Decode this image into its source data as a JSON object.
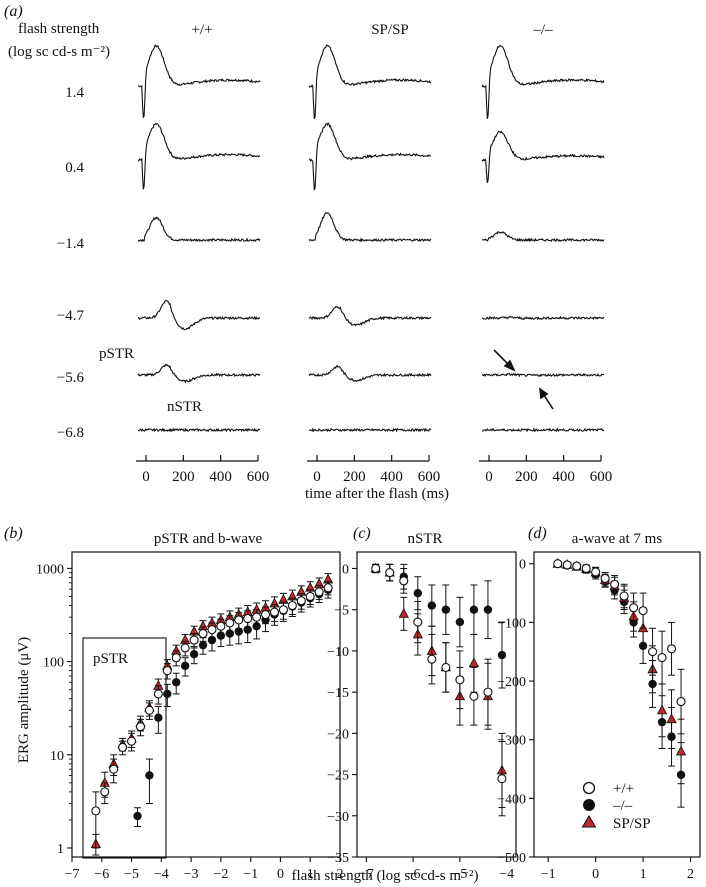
{
  "panel_a": {
    "label": "(a)",
    "strength_header_1": "flash strength",
    "strength_header_2": "(log sc cd-s m⁻²)",
    "column_titles": [
      "+/+",
      "SP/SP",
      "–/–"
    ],
    "row_labels": [
      "1.4",
      "0.4",
      "−1.4",
      "−4.7",
      "−5.6",
      "−6.8"
    ],
    "time_ticks": [
      "0",
      "200",
      "400",
      "600"
    ],
    "time_axis_label": "time after the flash (ms)",
    "annotation_pstr": "pSTR",
    "annotation_nstr": "nSTR",
    "traces_description_values": {
      "waveform_peak_mV_scaled": {
        "wt": [
          1.0,
          0.9,
          0.7,
          0.6,
          0.35,
          0.0
        ],
        "sp": [
          1.0,
          0.9,
          0.85,
          0.4,
          0.3,
          0.0
        ],
        "ko": [
          1.0,
          0.7,
          0.25,
          0.02,
          0.02,
          0.0
        ]
      }
    }
  },
  "colors": {
    "wt_fill": "#ffffff",
    "ko_fill": "#111111",
    "sp_fill": "#c0282d",
    "line": "#111111"
  },
  "shared_xlabel": "flash strength (log sc cd-s m⁻²)",
  "legend": [
    {
      "marker": "open-circle",
      "label": "+/+"
    },
    {
      "marker": "filled-circle",
      "label": "–/–"
    },
    {
      "marker": "red-triangle",
      "label": "SP/SP"
    }
  ],
  "chart_data": [
    {
      "id": "b",
      "panel_label": "(b)",
      "title": "pSTR and b-wave",
      "type": "scatter",
      "ylabel": "ERG amplitude (μV)",
      "yscale": "log",
      "xlim": [
        -7,
        2
      ],
      "ylim": [
        0.8,
        1500
      ],
      "xticks": [
        -7,
        -6,
        -5,
        -4,
        -3,
        -2,
        -1,
        0,
        1,
        2
      ],
      "yticks": [
        1,
        10,
        100,
        1000
      ],
      "inset_label": "pSTR",
      "series": [
        {
          "name": "+/+",
          "x": [
            -6.2,
            -5.9,
            -5.6,
            -5.3,
            -5.0,
            -4.7,
            -4.4,
            -4.1,
            -3.8,
            -3.5,
            -3.2,
            -2.9,
            -2.6,
            -2.3,
            -2.0,
            -1.7,
            -1.4,
            -1.1,
            -0.8,
            -0.5,
            -0.2,
            0.1,
            0.4,
            0.7,
            1.0,
            1.3,
            1.6
          ],
          "y": [
            2.5,
            4,
            7,
            12,
            14,
            20,
            30,
            45,
            80,
            110,
            140,
            170,
            200,
            220,
            240,
            260,
            280,
            290,
            300,
            320,
            340,
            360,
            400,
            450,
            500,
            560,
            620
          ],
          "err": [
            1.5,
            1,
            2,
            2,
            3,
            4,
            6,
            10,
            15,
            20,
            25,
            30,
            35,
            40,
            45,
            50,
            55,
            60,
            60,
            65,
            70,
            75,
            80,
            85,
            90,
            95,
            100
          ]
        },
        {
          "name": "–/–",
          "x": [
            -4.8,
            -4.4,
            -4.1,
            -3.8,
            -3.5,
            -3.2,
            -2.9,
            -2.6,
            -2.3,
            -2.0,
            -1.7,
            -1.4,
            -1.1,
            -0.8,
            -0.5,
            -0.2,
            0.1,
            0.4,
            0.7,
            1.0,
            1.3,
            1.6
          ],
          "y": [
            2.2,
            6,
            25,
            45,
            60,
            90,
            120,
            150,
            170,
            190,
            200,
            210,
            220,
            240,
            280,
            320,
            350,
            390,
            430,
            480,
            530,
            590
          ],
          "err": [
            0.5,
            3,
            8,
            12,
            15,
            20,
            25,
            30,
            40,
            45,
            50,
            55,
            60,
            65,
            70,
            75,
            80,
            85,
            90,
            95,
            100,
            110
          ]
        },
        {
          "name": "SP/SP",
          "x": [
            -6.2,
            -5.9,
            -5.6,
            -5.3,
            -5.0,
            -4.7,
            -4.4,
            -4.1,
            -3.8,
            -3.5,
            -3.2,
            -2.9,
            -2.6,
            -2.3,
            -2.0,
            -1.7,
            -1.4,
            -1.1,
            -0.8,
            -0.5,
            -0.2,
            0.1,
            0.4,
            0.7,
            1.0,
            1.3,
            1.6
          ],
          "y": [
            1.1,
            5,
            8,
            13,
            15,
            22,
            32,
            55,
            90,
            130,
            170,
            210,
            240,
            260,
            280,
            300,
            320,
            340,
            360,
            380,
            420,
            460,
            500,
            560,
            620,
            680,
            760
          ],
          "err": [
            0.3,
            1.5,
            2,
            2,
            3,
            4,
            6,
            10,
            15,
            20,
            25,
            30,
            35,
            40,
            45,
            50,
            55,
            60,
            65,
            70,
            75,
            80,
            85,
            90,
            100,
            110,
            120
          ]
        }
      ]
    },
    {
      "id": "c",
      "panel_label": "(c)",
      "title": "nSTR",
      "type": "scatter",
      "xlim": [
        -7.2,
        -3.8
      ],
      "ylim": [
        -35,
        2
      ],
      "xticks": [
        -7,
        -6,
        -5,
        -4
      ],
      "yticks": [
        0,
        -5,
        -10,
        -15,
        -20,
        -25,
        -30,
        -35
      ],
      "series": [
        {
          "name": "+/+",
          "x": [
            -6.8,
            -6.5,
            -6.2,
            -5.9,
            -5.6,
            -5.3,
            -5.0,
            -4.7,
            -4.4,
            -4.1
          ],
          "y": [
            0,
            -0.5,
            -1.5,
            -6.5,
            -11,
            -12,
            -13.5,
            -15.5,
            -15,
            -25.5
          ],
          "err": [
            0.5,
            1,
            1.5,
            2.5,
            3,
            3,
            3.5,
            3.5,
            4,
            4.5
          ]
        },
        {
          "name": "–/–",
          "x": [
            -6.8,
            -6.5,
            -6.2,
            -5.9,
            -5.6,
            -5.3,
            -5.0,
            -4.7,
            -4.4,
            -4.1
          ],
          "y": [
            0,
            -0.5,
            -1,
            -3,
            -4.5,
            -5,
            -6.5,
            -5,
            -5,
            -10.5
          ],
          "err": [
            0.5,
            1,
            1.5,
            2,
            2.5,
            3,
            3,
            3,
            3.5,
            4
          ]
        },
        {
          "name": "SP/SP",
          "x": [
            -6.8,
            -6.5,
            -6.2,
            -5.9,
            -5.6,
            -5.3,
            -5.0,
            -4.7,
            -4.4,
            -4.1
          ],
          "y": [
            0,
            -0.5,
            -5.5,
            -8,
            -10,
            -12,
            -15.5,
            -11.5,
            -15.5,
            -24.5
          ],
          "err": [
            0.5,
            1,
            2,
            2.5,
            3,
            3,
            3.5,
            3.5,
            4,
            4.5
          ]
        }
      ]
    },
    {
      "id": "d",
      "panel_label": "(d)",
      "title": "a-wave at 7 ms",
      "type": "scatter",
      "xlim": [
        -1.3,
        2.2
      ],
      "ylim": [
        -500,
        20
      ],
      "xticks": [
        -1,
        0,
        1,
        2
      ],
      "yticks": [
        0,
        -100,
        -200,
        -300,
        -400,
        -500
      ],
      "series": [
        {
          "name": "+/+",
          "x": [
            -0.8,
            -0.6,
            -0.4,
            -0.2,
            0.0,
            0.2,
            0.4,
            0.6,
            0.8,
            1.0,
            1.2,
            1.4,
            1.6,
            1.8
          ],
          "y": [
            0,
            -2,
            -4,
            -8,
            -14,
            -25,
            -35,
            -55,
            -75,
            -80,
            -150,
            -160,
            -145,
            -235
          ],
          "err": [
            3,
            4,
            5,
            6,
            8,
            10,
            15,
            20,
            25,
            30,
            40,
            45,
            45,
            55
          ]
        },
        {
          "name": "–/–",
          "x": [
            -0.8,
            -0.6,
            -0.4,
            -0.2,
            0.0,
            0.2,
            0.4,
            0.6,
            0.8,
            1.0,
            1.2,
            1.4,
            1.6,
            1.8
          ],
          "y": [
            0,
            -3,
            -5,
            -10,
            -18,
            -30,
            -45,
            -65,
            -100,
            -140,
            -205,
            -270,
            -295,
            -360
          ],
          "err": [
            3,
            4,
            5,
            6,
            8,
            10,
            15,
            20,
            25,
            30,
            40,
            45,
            50,
            55
          ]
        },
        {
          "name": "SP/SP",
          "x": [
            -0.8,
            -0.6,
            -0.4,
            -0.2,
            0.0,
            0.2,
            0.4,
            0.6,
            0.8,
            1.0,
            1.2,
            1.4,
            1.6,
            1.8
          ],
          "y": [
            0,
            -2,
            -5,
            -9,
            -15,
            -28,
            -38,
            -58,
            -90,
            -110,
            -180,
            -250,
            -265,
            -320
          ],
          "err": [
            3,
            4,
            5,
            6,
            8,
            10,
            15,
            20,
            25,
            30,
            40,
            45,
            50,
            55
          ]
        }
      ]
    }
  ]
}
